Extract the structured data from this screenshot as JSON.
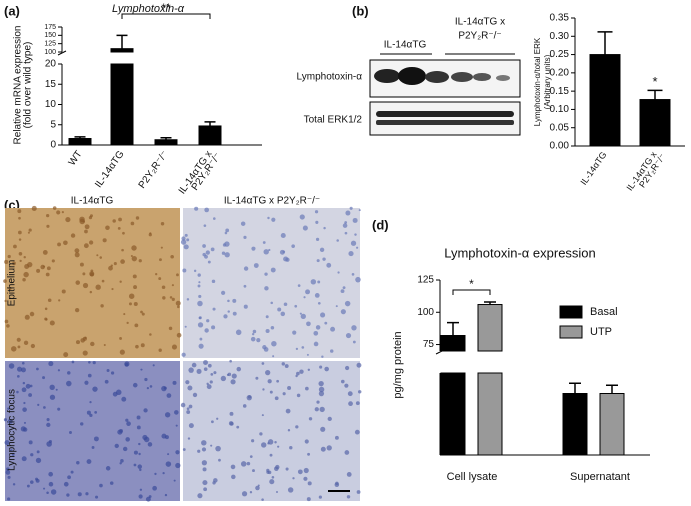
{
  "chart_data": [
    {
      "type": "bar",
      "label": "(a)",
      "title": "Lymphotoxin-α",
      "ylabel": [
        "Relative mRNA expression",
        "(fold over wild type)"
      ],
      "categories": [
        [
          "WT"
        ],
        [
          "IL-14αTG"
        ],
        [
          "P2Y₂R⁻/⁻"
        ],
        [
          "IL-14αTG x",
          "P2Y₂R⁻/⁻"
        ]
      ],
      "values": [
        1.6,
        110,
        1.3,
        4.7
      ],
      "errors": [
        0.4,
        40,
        0.5,
        1.0
      ],
      "color": "#000000",
      "segments": [
        {
          "ylim": [
            0,
            20
          ],
          "yticks": [
            0,
            5,
            10,
            15,
            20
          ]
        },
        {
          "ylim": [
            100,
            175
          ],
          "yticks": [
            100,
            125,
            150,
            175
          ]
        }
      ],
      "significance": "**"
    },
    {
      "type": "bar",
      "label": "(b)",
      "ylabel": [
        "Lymphotoxin-α/total ERK",
        "(Arbitrary units)"
      ],
      "categories": [
        [
          "IL-14αTG"
        ],
        [
          "IL-14αTG x",
          "P2Y₂R⁻/⁻"
        ]
      ],
      "values": [
        0.25,
        0.127
      ],
      "errors": [
        0.062,
        0.025
      ],
      "color": "#000000",
      "segments": [
        {
          "ylim": [
            0,
            0.35
          ],
          "yticks": [
            {
              "value": 0,
              "label": "0.00"
            },
            {
              "value": 0.05,
              "label": "0.05"
            },
            {
              "value": 0.1,
              "label": "0.10"
            },
            {
              "value": 0.15,
              "label": "0.15"
            },
            {
              "value": 0.2,
              "label": "0.20"
            },
            {
              "value": 0.25,
              "label": "0.25"
            },
            {
              "value": 0.3,
              "label": "0.30"
            },
            {
              "value": 0.35,
              "label": "0.35"
            }
          ]
        }
      ],
      "significance": "*"
    },
    {
      "type": "grouped_bar",
      "label": "(d)",
      "title": "Lymphotoxin-α expression",
      "ylabel": [
        "pg/mg protein"
      ],
      "categories": [
        [
          "Cell lysate"
        ],
        [
          "Supernatant"
        ]
      ],
      "series": [
        {
          "name": "Basal",
          "color": "#000000",
          "values": [
            82,
            15
          ],
          "errors": [
            10,
            2.5
          ]
        },
        {
          "name": "UTP",
          "color": "#999999",
          "values": [
            106,
            15
          ],
          "errors": [
            2,
            2
          ]
        }
      ],
      "segments": [
        {
          "ylim": [
            0,
            20
          ],
          "yticks": []
        },
        {
          "ylim": [
            70,
            125
          ],
          "yticks": [
            75,
            100,
            125
          ]
        }
      ],
      "legend": "right",
      "significance": "*"
    }
  ],
  "blot": {
    "lane_groups": [
      [
        "IL-14αTG"
      ],
      [
        "IL-14αTG x",
        "P2Y₂R⁻/⁻"
      ]
    ],
    "rows": [
      "Lymphotoxin-α",
      "Total ERK1/2"
    ]
  },
  "micrographs": {
    "label": "(c)",
    "columns": [
      "IL-14αTG",
      "IL-14αTG x P2Y₂R⁻/⁻"
    ],
    "rows": [
      "Epithelium",
      "Lymphocytic focus"
    ]
  }
}
